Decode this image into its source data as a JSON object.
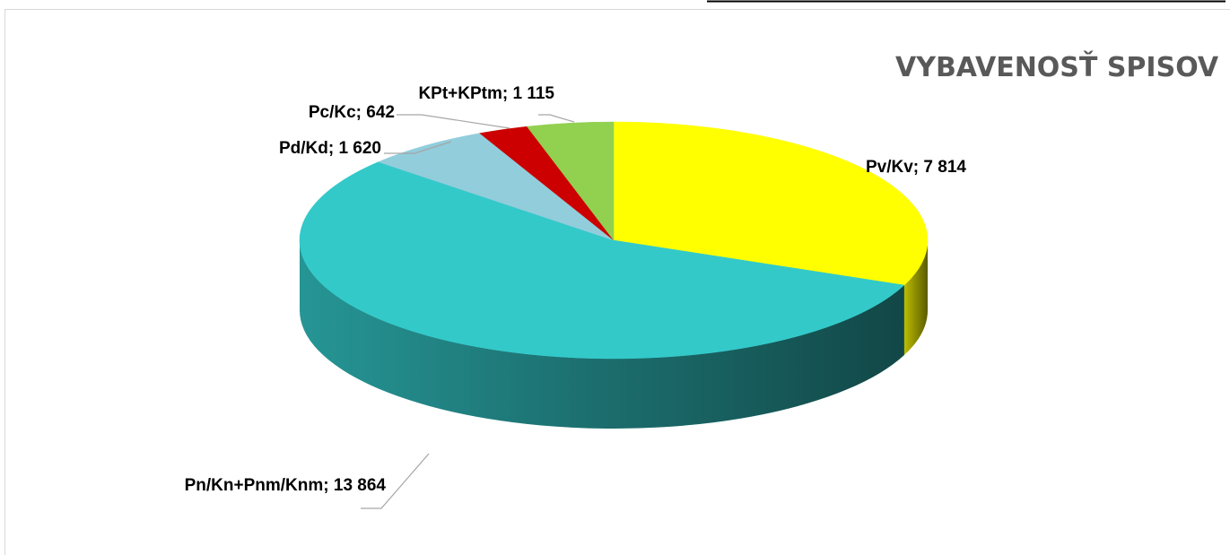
{
  "chart_data": {
    "type": "pie",
    "style": "3d",
    "title": "VYBAVENOSŤ SPISOV",
    "slices": [
      {
        "label": "Pv/Kv; 7 814",
        "name": "Pv/Kv",
        "value": 7814,
        "color": "#ffff00"
      },
      {
        "label": "Pn/Kn+Pnm/Knm; 13 864",
        "name": "Pn/Kn+Pnm/Knm",
        "value": 13864,
        "color": "#33c9c9"
      },
      {
        "label": "Pd/Kd; 1 620",
        "name": "Pd/Kd",
        "value": 1620,
        "color": "#92cddc"
      },
      {
        "label": "Pc/Kc; 642",
        "name": "Pc/Kc",
        "value": 642,
        "color": "#cc0000"
      },
      {
        "label": "KPt+KPtm; 1 115",
        "name": "KPt+KPtm",
        "value": 1115,
        "color": "#92d050"
      }
    ],
    "legend": "none"
  }
}
